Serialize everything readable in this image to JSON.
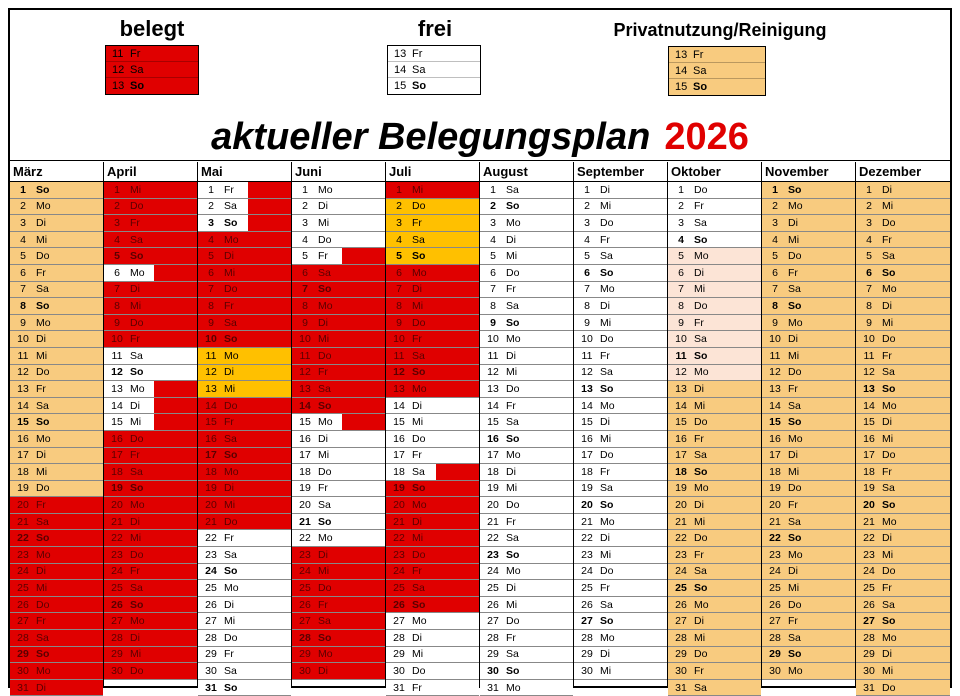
{
  "title": "aktueller Belegungsplan",
  "year": "2026",
  "colors": {
    "belegt": "#e00000",
    "frei": "#ffffff",
    "privat": "#ffc000",
    "peach": "#fce4d6",
    "orange_light": "#f8cb7f"
  },
  "legend": {
    "belegt": {
      "title": "belegt",
      "rows": [
        {
          "d": "11",
          "w": "Fr"
        },
        {
          "d": "12",
          "w": "Sa"
        },
        {
          "d": "13",
          "w": "So"
        }
      ]
    },
    "frei": {
      "title": "frei",
      "rows": [
        {
          "d": "13",
          "w": "Fr"
        },
        {
          "d": "14",
          "w": "Sa"
        },
        {
          "d": "15",
          "w": "So"
        }
      ]
    },
    "privat": {
      "title": "Privatnutzung/Reinigung",
      "rows": [
        {
          "d": "13",
          "w": "Fr"
        },
        {
          "d": "14",
          "w": "Sa"
        },
        {
          "d": "15",
          "w": "So"
        }
      ]
    }
  },
  "months": [
    {
      "name": "März",
      "first": 0,
      "days": 31,
      "states": "PPPPPPPPPPPPPPPPPPPBBBBBBBBBBBB",
      "bars": "wwwwwwwwwwwwwwwwwwwhhhhhhhhhhhh"
    },
    {
      "name": "April",
      "first": 3,
      "days": 30,
      "states": "BBBBBFBBBBFFFFFBBBBBBBBBBBBBBB",
      "bars": ""
    },
    {
      "name": "Mai",
      "first": 5,
      "days": 31,
      "states": "FFFBBBBBBBPPPBBBBBBBBFFFFFFFFFF",
      "bars": ""
    },
    {
      "name": "Juni",
      "first": 1,
      "days": 30,
      "states": "FFFFFBBBBBBBBBFFFFFFFFBBBBBBBBB",
      "bars": ""
    },
    {
      "name": "Juli",
      "first": 3,
      "days": 31,
      "states": "BPPPPBBBBBBBBFFFFFBBBBBBBBFFFFF",
      "bars": ""
    },
    {
      "name": "August",
      "first": 6,
      "days": 31,
      "states": "FFFFFFFFFFFFFFFFFFFFFFFFFFFFFFF",
      "bars": ""
    },
    {
      "name": "September",
      "first": 2,
      "days": 30,
      "states": "FFFFFFFFFFFFFFFFFFFFFFFFFFFFFF",
      "bars": ""
    },
    {
      "name": "Oktober",
      "first": 4,
      "days": 31,
      "states": "FFFFKKKKKKKKPPPPPPPPPPPPPPPPPPP",
      "bars": ""
    },
    {
      "name": "November",
      "first": 0,
      "days": 30,
      "states": "PPPPPPPPPPPPPPPPPPPPPPPPPPPPPP",
      "bars": ""
    },
    {
      "name": "Dezember",
      "first": 2,
      "days": 31,
      "states": "PPPPPPPPPPPPPPPPPPPPPPPPPPPPPPP",
      "bars": ""
    }
  ],
  "weekdays": [
    "So",
    "Mo",
    "Di",
    "Mi",
    "Do",
    "Fr",
    "Sa"
  ],
  "note": "-"
}
